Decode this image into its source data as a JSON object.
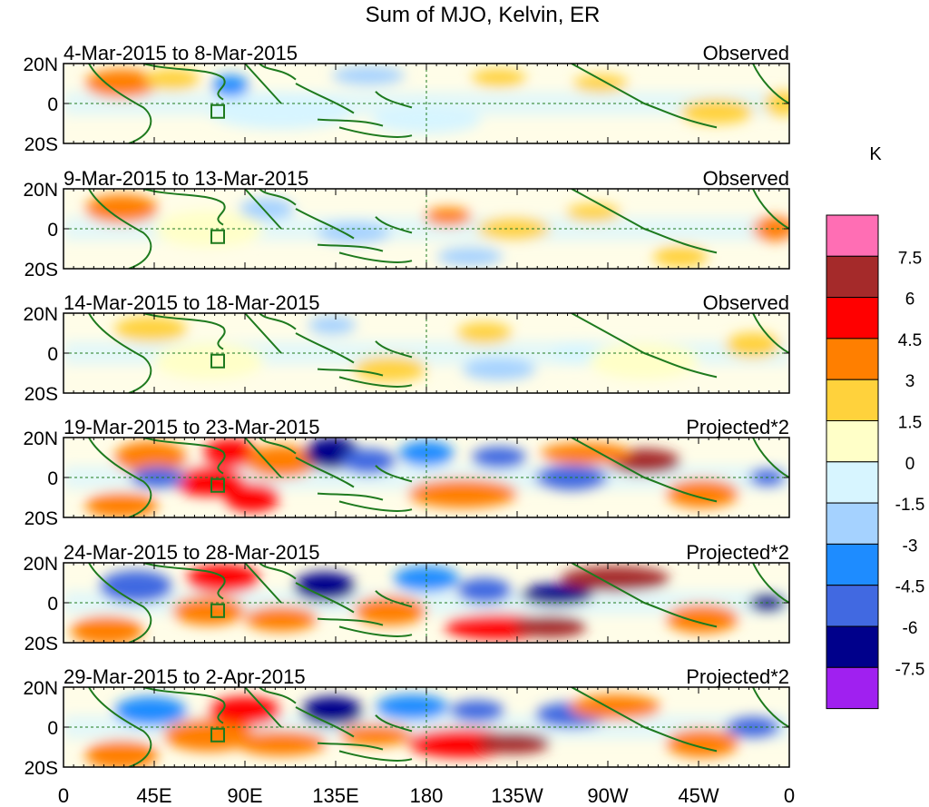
{
  "title": "Sum of MJO, Kelvin, ER",
  "units_label": "K",
  "panels": [
    {
      "date_range": "4-Mar-2015 to 8-Mar-2015",
      "kind": "Observed"
    },
    {
      "date_range": "9-Mar-2015 to 13-Mar-2015",
      "kind": "Observed"
    },
    {
      "date_range": "14-Mar-2015 to 18-Mar-2015",
      "kind": "Observed"
    },
    {
      "date_range": "19-Mar-2015 to 23-Mar-2015",
      "kind": "Projected*2"
    },
    {
      "date_range": "24-Mar-2015 to 28-Mar-2015",
      "kind": "Projected*2"
    },
    {
      "date_range": "29-Mar-2015 to 2-Apr-2015",
      "kind": "Projected*2"
    }
  ],
  "lat_labels": [
    "20N",
    "0",
    "20S"
  ],
  "lon_labels": [
    "0",
    "45E",
    "90E",
    "135E",
    "180",
    "135W",
    "90W",
    "45W",
    "0"
  ],
  "colorbar": {
    "levels": [
      "7.5",
      "6",
      "4.5",
      "3",
      "1.5",
      "0",
      "-1.5",
      "-3",
      "-4.5",
      "-6",
      "-7.5"
    ],
    "colors": [
      "#ff6eb4",
      "#a52a2a",
      "#ff0000",
      "#ff7f00",
      "#ffd23c",
      "#ffffc8",
      "#d7f5ff",
      "#a5d2ff",
      "#1e8cff",
      "#4169e1",
      "#00008b",
      "#a020f0"
    ]
  },
  "colors": {
    "coastline": "#1e7a1e",
    "grid_line": "#1e7a1e"
  }
}
